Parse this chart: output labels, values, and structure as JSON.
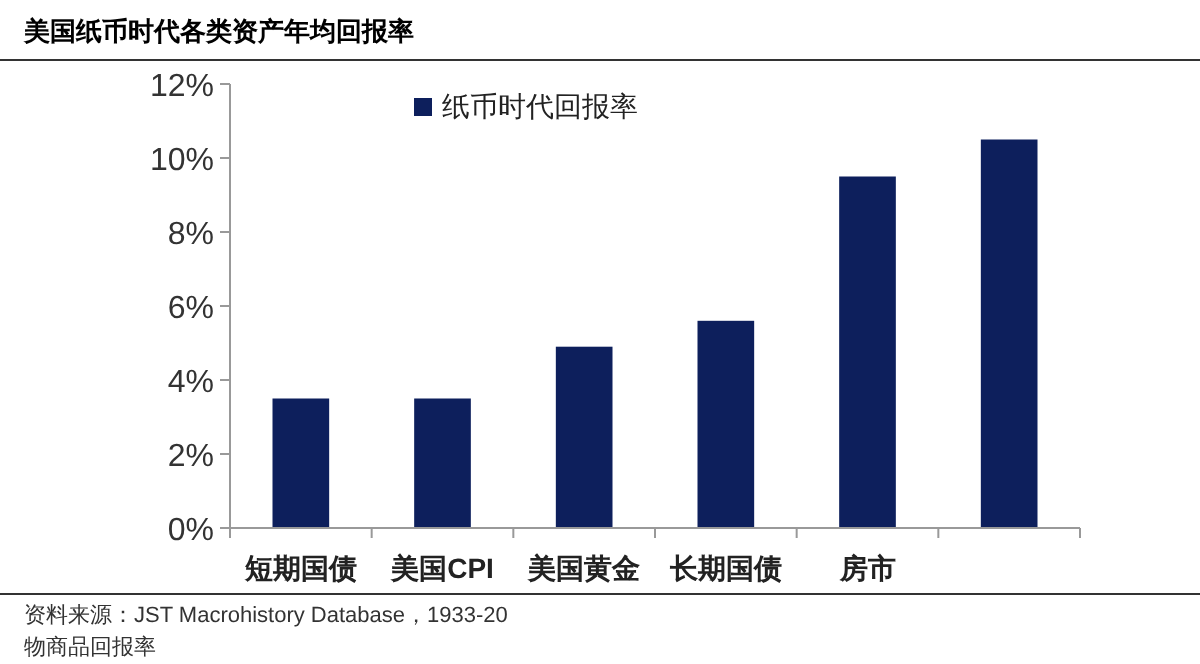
{
  "chart_data": {
    "type": "bar",
    "title": "美国纸币时代各类资产年均回报率",
    "categories": [
      "短期国债",
      "美国CPI",
      "美国黄金",
      "长期国债",
      "房市",
      null
    ],
    "series": [
      {
        "name": "纸币时代回报率",
        "color": "#0d1f5c",
        "values": [
          3.5,
          3.5,
          4.9,
          5.6,
          9.5,
          10.5
        ]
      }
    ],
    "ylim": [
      0,
      12
    ],
    "yticks": [
      {
        "value": 0,
        "label": "0%"
      },
      {
        "value": 2,
        "label": "2%"
      },
      {
        "value": 4,
        "label": "4%"
      },
      {
        "value": 6,
        "label": "6%"
      },
      {
        "value": 8,
        "label": "8%"
      },
      {
        "value": 10,
        "label": "10%"
      },
      {
        "value": 12,
        "label": "12%"
      }
    ],
    "grid": false,
    "legend": "top",
    "annotations": [
      "资料来源：JST Macrohistory Database，1933-20",
      "物商品回报率"
    ]
  }
}
